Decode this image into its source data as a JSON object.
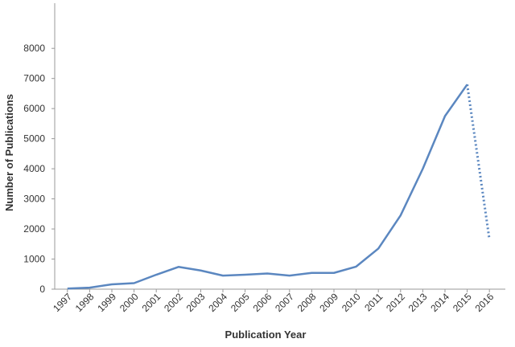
{
  "chart_data": {
    "type": "line",
    "x_label": "Publication Year",
    "y_label": "Number of Publications",
    "categories": [
      "1997",
      "1998",
      "1999",
      "2000",
      "2001",
      "2002",
      "2003",
      "2004",
      "2005",
      "2006",
      "2007",
      "2008",
      "2009",
      "2010",
      "2011",
      "2012",
      "2013",
      "2014",
      "2015",
      "2016"
    ],
    "series": [
      {
        "color": "#5b87c0",
        "style": "solid",
        "values": [
          20,
          50,
          160,
          200,
          480,
          740,
          620,
          450,
          480,
          520,
          450,
          540,
          540,
          750,
          1350,
          2450,
          4000,
          5750,
          6800,
          null
        ]
      },
      {
        "color": "#5b87c0",
        "style": "dotted",
        "values": [
          null,
          null,
          null,
          null,
          null,
          null,
          null,
          null,
          null,
          null,
          null,
          null,
          null,
          null,
          null,
          null,
          null,
          null,
          6800,
          1650
        ]
      }
    ],
    "ylim": [
      0,
      9500
    ],
    "yticks": [
      0,
      1000,
      2000,
      3000,
      4000,
      5000,
      6000,
      7000,
      8000
    ],
    "grid": false
  }
}
